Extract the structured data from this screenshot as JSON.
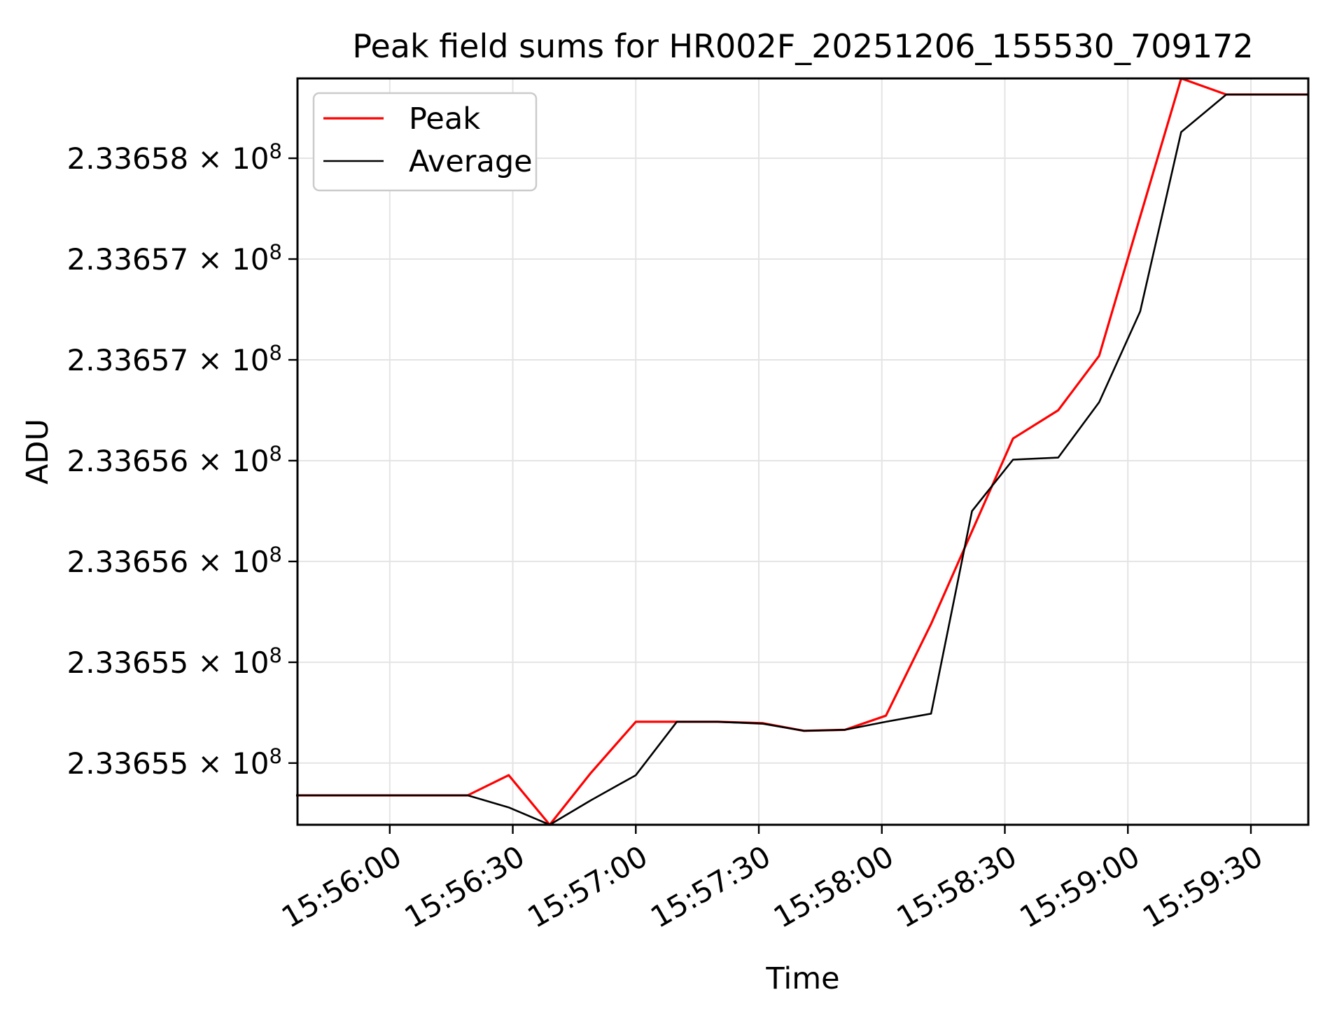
{
  "figure": {
    "background": "#ffffff"
  },
  "chart_data": {
    "type": "line",
    "title": "Peak field sums for HR002F_20251206_155530_709172",
    "xlabel": "Time",
    "ylabel": "ADU",
    "grid": true,
    "legend_position": "upper left",
    "axis_color": "#000000",
    "grid_color": "#e4e4e4",
    "xlim": [
      "15:55:37.5",
      "15:59:44"
    ],
    "ylim": [
      233654694,
      233658396
    ],
    "x_ticks": [
      "15:56:00",
      "15:56:30",
      "15:57:00",
      "15:57:30",
      "15:58:00",
      "15:58:30",
      "15:59:00",
      "15:59:30"
    ],
    "y_ticks": [
      {
        "value": 233658000,
        "label_main": "2.33658 × 10",
        "label_exp": "8"
      },
      {
        "value": 233657500,
        "label_main": "2.33657 × 10",
        "label_exp": "8"
      },
      {
        "value": 233657000,
        "label_main": "2.33657 × 10",
        "label_exp": "8"
      },
      {
        "value": 233656500,
        "label_main": "2.33656 × 10",
        "label_exp": "8"
      },
      {
        "value": 233656000,
        "label_main": "2.33656 × 10",
        "label_exp": "8"
      },
      {
        "value": 233655500,
        "label_main": "2.33655 × 10",
        "label_exp": "8"
      },
      {
        "value": 233655000,
        "label_main": "2.33655 × 10",
        "label_exp": "8"
      }
    ],
    "x": [
      "15:55:37",
      "15:55:48",
      "15:55:58",
      "15:56:08",
      "15:56:19",
      "15:56:29",
      "15:56:39",
      "15:56:49",
      "15:57:00",
      "15:57:10",
      "15:57:20",
      "15:57:31",
      "15:57:41",
      "15:57:51",
      "15:58:01",
      "15:58:12",
      "15:58:22",
      "15:58:32",
      "15:58:43",
      "15:58:53",
      "15:59:03",
      "15:59:13",
      "15:59:24",
      "15:59:34",
      "15:59:44"
    ],
    "series": [
      {
        "name": "Peak",
        "color": "#ff0000",
        "linewidth": 3.2,
        "values": [
          233654840,
          233654840,
          233654840,
          233654840,
          233654840,
          233654940,
          233654694,
          233654950,
          233655205,
          233655205,
          233655205,
          233655198,
          233655160,
          233655165,
          233655235,
          233655690,
          233656150,
          233656610,
          233656750,
          233657020,
          233657710,
          233658396,
          233658316,
          233658316,
          233658316
        ]
      },
      {
        "name": "Average",
        "color": "#000000",
        "linewidth": 2.6,
        "values": [
          233654840,
          233654840,
          233654840,
          233654840,
          233654840,
          233654780,
          233654694,
          233654815,
          233654940,
          233655205,
          233655205,
          233655195,
          233655160,
          233655165,
          233655205,
          233655245,
          233656250,
          233656505,
          233656515,
          233656790,
          233657240,
          233658130,
          233658316,
          233658316,
          233658316
        ]
      }
    ]
  }
}
